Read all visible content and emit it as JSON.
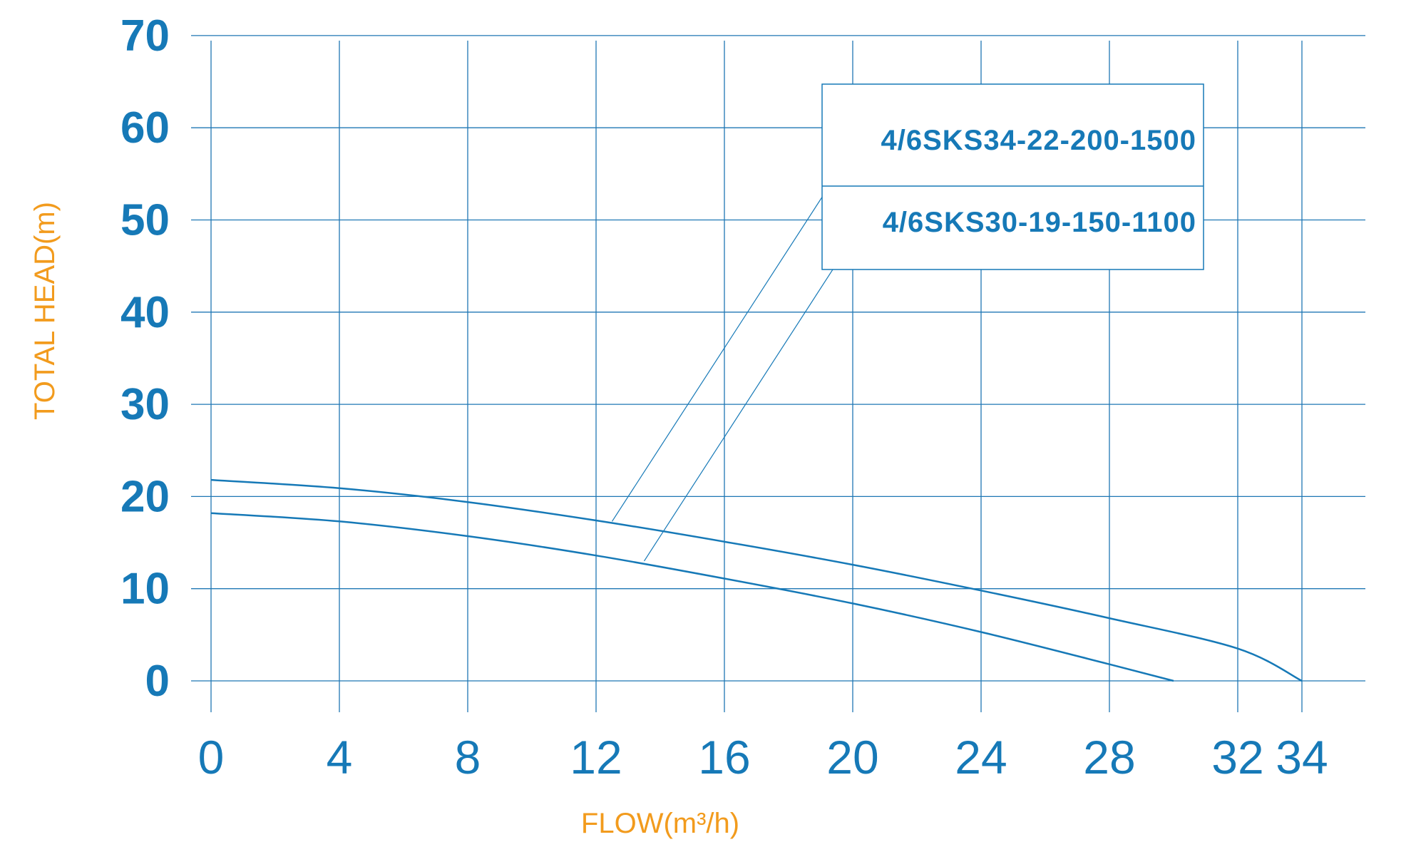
{
  "chart_data": {
    "type": "line",
    "xlabel": "FLOW(m³/h)",
    "ylabel": "TOTAL HEAD(m)",
    "x_ticks": [
      "0",
      "4",
      "8",
      "12",
      "16",
      "20",
      "24",
      "28",
      "32",
      "34"
    ],
    "y_ticks": [
      "0",
      "10",
      "20",
      "30",
      "40",
      "50",
      "60",
      "70"
    ],
    "xlim": [
      0,
      36.3
    ],
    "ylim": [
      -3.4,
      70
    ],
    "grid": true,
    "legend_position": "top-right",
    "series": [
      {
        "name": "4/6SKS34-22-200-1500",
        "x": [
          0,
          4,
          8,
          12,
          16,
          20,
          24,
          28,
          32,
          34
        ],
        "y": [
          21.8,
          20.9,
          19.4,
          17.4,
          15.1,
          12.6,
          9.8,
          6.8,
          3.5,
          0
        ]
      },
      {
        "name": "4/6SKS30-19-150-1100",
        "x": [
          0,
          4,
          8,
          12,
          16,
          20,
          24,
          28,
          30
        ],
        "y": [
          18.2,
          17.3,
          15.7,
          13.6,
          11.1,
          8.4,
          5.3,
          1.8,
          0
        ]
      }
    ],
    "colors": {
      "line": "#1679b7",
      "tick_text": "#1679b7",
      "axis_label": "#f29b1d"
    }
  }
}
